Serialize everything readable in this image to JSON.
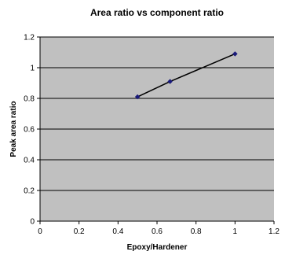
{
  "chart_data": {
    "type": "line",
    "title": "Area ratio vs component ratio",
    "xlabel": "Epoxy/Hardener",
    "ylabel": "Peak area ratio",
    "xlim": [
      0,
      1.2
    ],
    "ylim": [
      0,
      1.2
    ],
    "xticks": [
      0,
      0.2,
      0.4,
      0.6,
      0.8,
      1,
      1.2
    ],
    "yticks": [
      0,
      0.2,
      0.4,
      0.6,
      0.8,
      1,
      1.2
    ],
    "grid": "horizontal",
    "legend": "none",
    "series": [
      {
        "x": [
          0.5,
          0.667,
          1
        ],
        "y": [
          0.81,
          0.91,
          1.09
        ],
        "marker": "diamond",
        "line_color": "#000000",
        "marker_color": "#1a1a7a"
      }
    ]
  },
  "colors": {
    "plot_background": "#c0c0c0",
    "gridline": "#000000"
  }
}
